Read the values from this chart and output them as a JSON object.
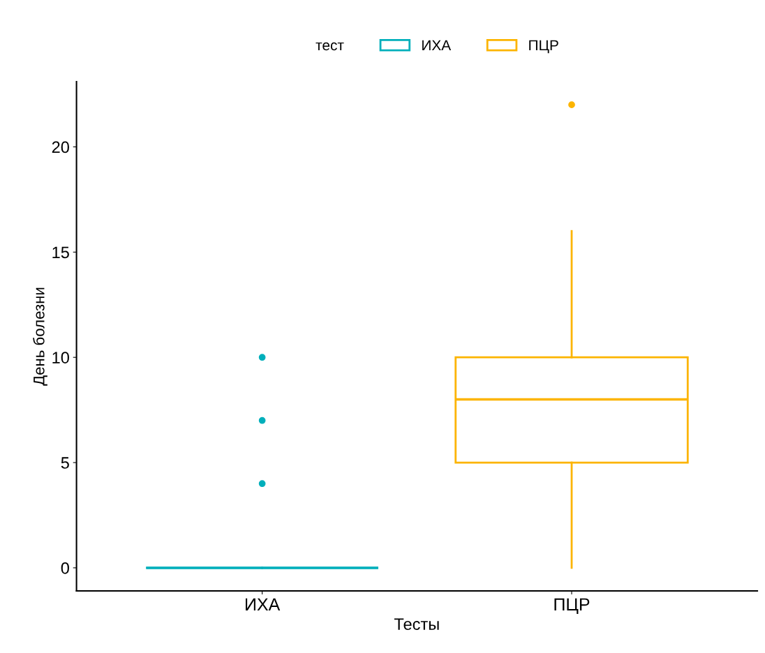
{
  "chart_data": {
    "type": "box",
    "xlabel": "Тесты",
    "ylabel": "День болезни",
    "legend_title": "тест",
    "categories": [
      "ИХА",
      "ПЦР"
    ],
    "series": [
      {
        "name": "ИХА",
        "color": "#00afbb",
        "boxes": [
          {
            "low": 0,
            "q1": 0,
            "median": 0,
            "q3": 0,
            "high": 0,
            "outliers": [
              4,
              7,
              10
            ]
          },
          null
        ]
      },
      {
        "name": "ПЦР",
        "color": "#fcb400",
        "boxes": [
          null,
          {
            "low": 0,
            "q1": 5,
            "median": 8,
            "q3": 10,
            "high": 16,
            "outliers": [
              22
            ]
          }
        ]
      }
    ],
    "ylim": [
      -1.1,
      23.1
    ],
    "yticks": [
      0,
      5,
      10,
      15,
      20
    ],
    "grid": false,
    "legend": "top"
  }
}
